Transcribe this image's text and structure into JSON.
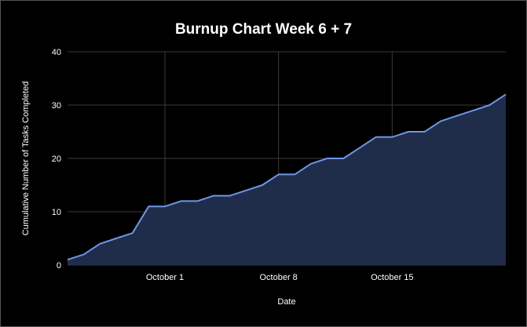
{
  "colors": {
    "background": "#000000",
    "plot_background": "#000000",
    "grid": "#3a3a3a",
    "line": "#6f95e6",
    "area": "#1f2d4b",
    "text": "#ffffff",
    "border": "#555555"
  },
  "chart_data": {
    "type": "area",
    "title": "Burnup Chart Week 6 + 7",
    "xlabel": "Date",
    "ylabel": "Cumulative Number of Tasks Completed",
    "x_ticks": [
      {
        "date": "2023-10-01",
        "label": "October 1"
      },
      {
        "date": "2023-10-08",
        "label": "October 8"
      },
      {
        "date": "2023-10-15",
        "label": "October 15"
      }
    ],
    "xlim": [
      "2023-09-25",
      "2023-10-22"
    ],
    "ylim": [
      0,
      40
    ],
    "y_ticks": [
      0,
      10,
      20,
      30,
      40
    ],
    "grid": true,
    "legend": "none",
    "series": [
      {
        "x": [
          "2023-09-25",
          "2023-09-26",
          "2023-09-27",
          "2023-09-28",
          "2023-09-29",
          "2023-09-30",
          "2023-10-01",
          "2023-10-02",
          "2023-10-03",
          "2023-10-04",
          "2023-10-05",
          "2023-10-06",
          "2023-10-07",
          "2023-10-08",
          "2023-10-09",
          "2023-10-10",
          "2023-10-11",
          "2023-10-12",
          "2023-10-13",
          "2023-10-14",
          "2023-10-15",
          "2023-10-16",
          "2023-10-17",
          "2023-10-18",
          "2023-10-19",
          "2023-10-20",
          "2023-10-21",
          "2023-10-22"
        ],
        "y": [
          1,
          2,
          4,
          5,
          6,
          11,
          11,
          12,
          12,
          13,
          13,
          14,
          15,
          17,
          17,
          19,
          20,
          20,
          22,
          24,
          24,
          25,
          25,
          27,
          28,
          29,
          30,
          32
        ]
      }
    ]
  }
}
